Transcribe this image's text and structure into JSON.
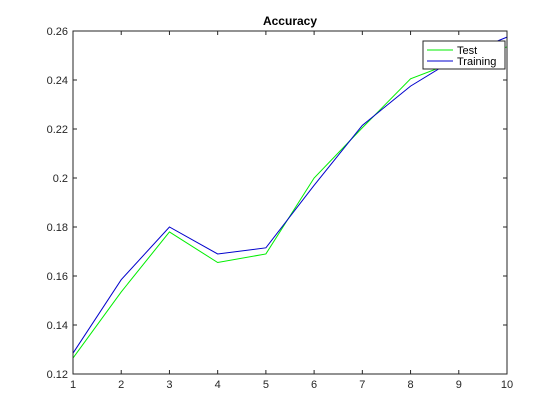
{
  "chart_data": {
    "type": "line",
    "title": "Accuracy",
    "xlabel": "",
    "ylabel": "",
    "x": [
      1,
      2,
      3,
      4,
      5,
      6,
      7,
      8,
      9,
      10
    ],
    "xlim": [
      1,
      10
    ],
    "ylim": [
      0.12,
      0.26
    ],
    "xticks": [
      1,
      2,
      3,
      4,
      5,
      6,
      7,
      8,
      9,
      10
    ],
    "yticks": [
      0.12,
      0.14,
      0.16,
      0.18,
      0.2,
      0.22,
      0.24,
      0.26
    ],
    "xtick_labels": [
      "1",
      "2",
      "3",
      "4",
      "5",
      "6",
      "7",
      "8",
      "9",
      "10"
    ],
    "ytick_labels": [
      "0.12",
      "0.14",
      "0.16",
      "0.18",
      "0.2",
      "0.22",
      "0.24",
      "0.26"
    ],
    "grid": false,
    "legend_position": "top-right",
    "series": [
      {
        "name": "Test",
        "color": "#00ee00",
        "values": [
          0.1265,
          0.1535,
          0.178,
          0.1655,
          0.169,
          0.2,
          0.2205,
          0.2405,
          0.248,
          0.2535
        ]
      },
      {
        "name": "Training",
        "color": "#0000cc",
        "values": [
          0.1285,
          0.1585,
          0.18,
          0.169,
          0.1715,
          0.197,
          0.2215,
          0.2375,
          0.2495,
          0.2575
        ]
      }
    ]
  }
}
